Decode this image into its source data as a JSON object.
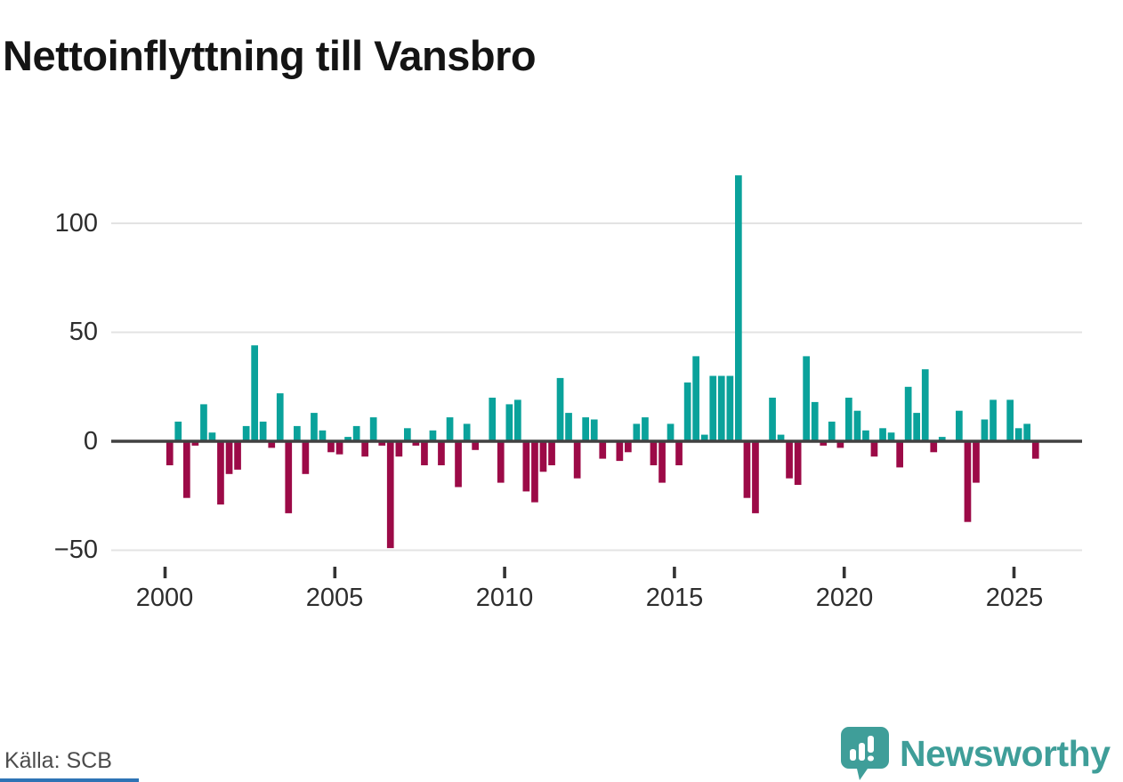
{
  "title": "Nettoinflyttning till Vansbro",
  "source": "Källa: SCB",
  "branding": {
    "name": "Newsworthy"
  },
  "colors": {
    "positive_bar": "#0aa29b",
    "negative_bar": "#9c0a47",
    "zero_line": "#414141",
    "gridline": "#e3e3e3",
    "brand_teal": "#3f9e99",
    "accent_blue": "#2e74b5"
  },
  "chart_data": {
    "type": "bar",
    "title": "Nettoinflyttning till Vansbro",
    "x_unit": "kvartal",
    "x_tick_labels": [
      "2000",
      "2005",
      "2010",
      "2015",
      "2020",
      "2025"
    ],
    "y_tick_labels": [
      "100",
      "50",
      "0",
      "−50"
    ],
    "y_ticks": [
      100,
      50,
      0,
      -50
    ],
    "ylim": [
      -55,
      130
    ],
    "grid": "horizontal",
    "legend": "none",
    "series_by_year": [
      {
        "year": 2000,
        "q": [
          -11,
          9,
          -26,
          -2
        ]
      },
      {
        "year": 2001,
        "q": [
          17,
          4,
          -29,
          -15
        ]
      },
      {
        "year": 2002,
        "q": [
          -13,
          7,
          44,
          9
        ]
      },
      {
        "year": 2003,
        "q": [
          -3,
          22,
          -33,
          7
        ]
      },
      {
        "year": 2004,
        "q": [
          -15,
          13,
          5,
          -5
        ]
      },
      {
        "year": 2005,
        "q": [
          -6,
          2,
          7,
          -7
        ]
      },
      {
        "year": 2006,
        "q": [
          11,
          -2,
          -49,
          -7
        ]
      },
      {
        "year": 2007,
        "q": [
          6,
          -2,
          -11,
          5
        ]
      },
      {
        "year": 2008,
        "q": [
          -11,
          11,
          -21,
          8
        ]
      },
      {
        "year": 2009,
        "q": [
          -4,
          0,
          20,
          -19
        ]
      },
      {
        "year": 2010,
        "q": [
          17,
          19,
          -23,
          -28
        ]
      },
      {
        "year": 2011,
        "q": [
          -14,
          -11,
          29,
          13
        ]
      },
      {
        "year": 2012,
        "q": [
          -17,
          11,
          10,
          -8
        ]
      },
      {
        "year": 2013,
        "q": [
          0,
          -9,
          -5,
          8
        ]
      },
      {
        "year": 2014,
        "q": [
          11,
          -11,
          -19,
          8
        ]
      },
      {
        "year": 2015,
        "q": [
          -11,
          27,
          39,
          3
        ]
      },
      {
        "year": 2016,
        "q": [
          30,
          30,
          30,
          122
        ]
      },
      {
        "year": 2017,
        "q": [
          -26,
          -33,
          0,
          20
        ]
      },
      {
        "year": 2018,
        "q": [
          3,
          -17,
          -20,
          39
        ]
      },
      {
        "year": 2019,
        "q": [
          18,
          -2,
          9,
          -3
        ]
      },
      {
        "year": 2020,
        "q": [
          20,
          14,
          5,
          -7
        ]
      },
      {
        "year": 2021,
        "q": [
          6,
          4,
          -12,
          25
        ]
      },
      {
        "year": 2022,
        "q": [
          13,
          33,
          -5,
          2
        ]
      },
      {
        "year": 2023,
        "q": [
          0,
          14,
          -37,
          -19
        ]
      },
      {
        "year": 2024,
        "q": [
          10,
          19,
          0,
          19
        ]
      },
      {
        "year": 2025,
        "q": [
          6,
          8,
          -8
        ]
      }
    ]
  }
}
